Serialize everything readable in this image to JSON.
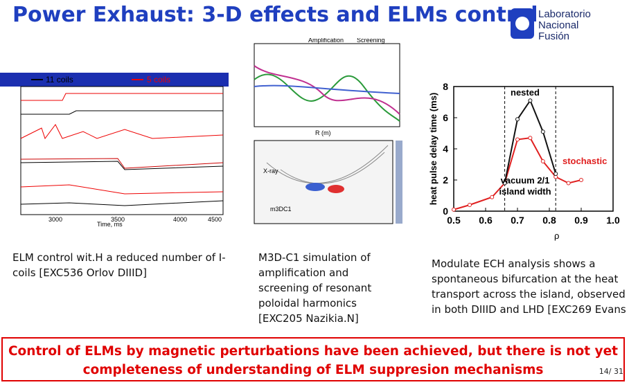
{
  "header": {
    "title": "Power Exhaust: 3-D effects and ELMs control",
    "logo": [
      "Laboratorio",
      "Nacional",
      "Fusión"
    ]
  },
  "figure1": {
    "legend": [
      "11 coils",
      "5 coils"
    ],
    "xticks": [
      "3000",
      "3500",
      "4000",
      "4500"
    ],
    "xlabel": "Time, ms"
  },
  "figure2": {
    "labels": [
      "Amplification",
      "Screening",
      "R (m)",
      "X-ray",
      "m3DC1"
    ]
  },
  "figure3": {
    "ylabel": "heat pulse delay time (ms)",
    "xlabel": "ρ",
    "xlim": [
      0.5,
      1.0
    ],
    "ylim": [
      0,
      8
    ],
    "xticks": [
      0.5,
      0.6,
      0.7,
      0.8,
      0.9,
      {
        "value": 1.0,
        "label": "1.0"
      }
    ],
    "yticks": [
      0,
      2,
      4,
      6,
      8
    ],
    "annotations": [
      "nested",
      "stochastic",
      "vacuum 2/1",
      "island width"
    ],
    "series": [
      {
        "name": "stochastic",
        "color": "#e02020",
        "x": [
          0.5,
          0.55,
          0.62,
          0.66,
          0.7,
          0.74,
          0.78,
          0.82,
          0.86,
          0.9
        ],
        "values": [
          0.1,
          0.4,
          0.9,
          1.8,
          4.6,
          4.7,
          3.2,
          2.2,
          1.8,
          2.0
        ]
      },
      {
        "name": "nested",
        "color": "#111111",
        "x": [
          0.66,
          0.7,
          0.74,
          0.78,
          0.82
        ],
        "values": [
          1.8,
          5.9,
          7.1,
          5.1,
          2.4
        ]
      }
    ]
  },
  "captions": [
    "ELM control wit.H a reduced number of I-coils [EXC536 Orlov DIIID]",
    "M3D-C1 simulation of amplification and screening of resonant poloidal harmonics [EXC205 Nazikia.N]",
    "Modulate ECH analysis shows a spontaneous bifurcation at the heat transport across the island, observed in both DIIID and LHD [EXC269 Evans"
  ],
  "conclusion": "Control of ELMs by magnetic perturbations have been achieved, but there is not yet completeness of understanding of ELM suppresion mechanisms",
  "page": "14/ 31"
}
